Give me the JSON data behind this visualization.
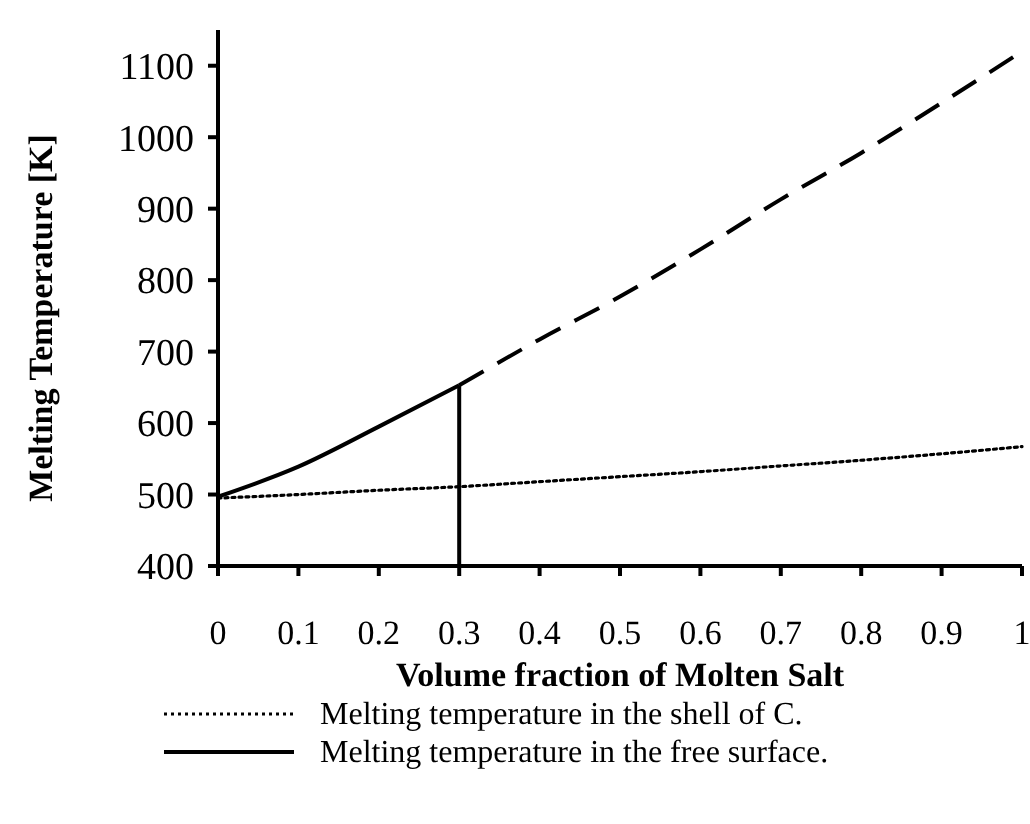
{
  "chart_data": {
    "type": "line",
    "xlabel": "Volume fraction of Molten Salt",
    "ylabel": "Melting Temperature [K]",
    "xlim": [
      0,
      1
    ],
    "ylim": [
      400,
      1150
    ],
    "xticks": [
      0,
      0.1,
      0.2,
      0.3,
      0.4,
      0.5,
      0.6,
      0.7,
      0.8,
      0.9,
      1
    ],
    "yticks": [
      400,
      500,
      600,
      700,
      800,
      900,
      1000,
      1100
    ],
    "grid": false,
    "legend": "bottom",
    "series": [
      {
        "name": "Melting temperature in the shell of C.",
        "color": "#000000",
        "line_style": "dotted",
        "x": [
          0,
          0.1,
          0.2,
          0.3,
          0.4,
          0.5,
          0.6,
          0.7,
          0.8,
          0.9,
          1
        ],
        "values": [
          495,
          500,
          506,
          511,
          518,
          525,
          532,
          540,
          548,
          557,
          567
        ]
      },
      {
        "name": "Melting temperature in the free surface.",
        "color": "#000000",
        "line_style": "solid",
        "x": [
          0,
          0.1,
          0.2,
          0.3
        ],
        "values": [
          497,
          539,
          595,
          653
        ]
      },
      {
        "color": "#000000",
        "line_style": "dashed",
        "x": [
          0.3,
          0.4,
          0.5,
          0.6,
          0.7,
          0.8,
          0.9,
          1
        ],
        "values": [
          653,
          717,
          777,
          843,
          913,
          978,
          1048,
          1120
        ]
      },
      {
        "color": "#000000",
        "line_style": "solid",
        "x": [
          0.3,
          0.3
        ],
        "values": [
          400,
          653
        ]
      }
    ]
  }
}
